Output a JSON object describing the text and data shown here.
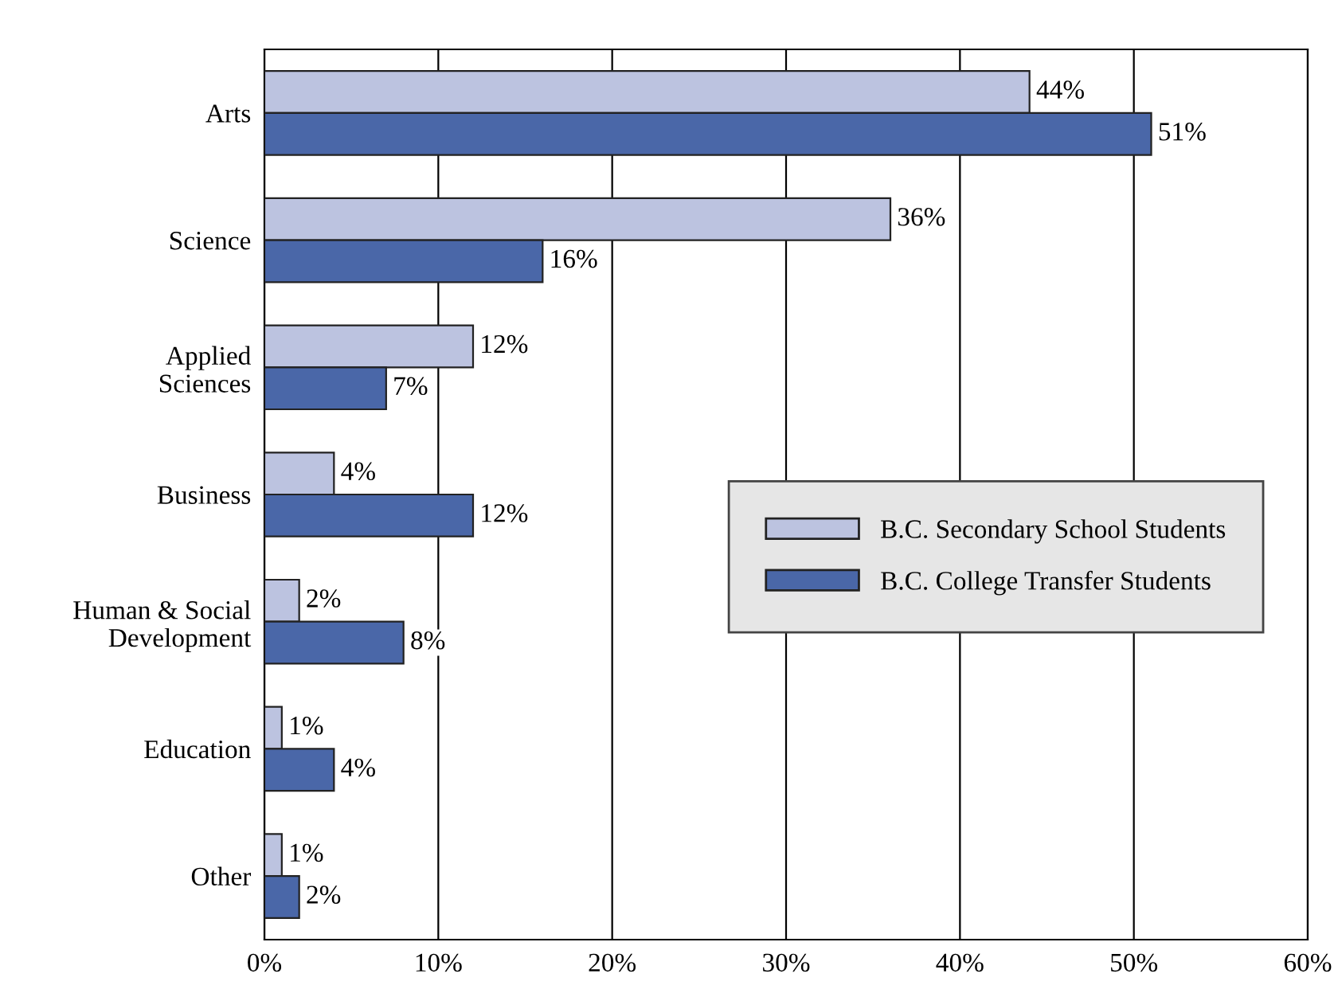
{
  "chart_data": {
    "type": "bar",
    "orientation": "horizontal",
    "categories": [
      "Arts",
      "Science",
      "Applied\nSciences",
      "Business",
      "Human & Social\nDevelopment",
      "Education",
      "Other"
    ],
    "series": [
      {
        "name": "B.C. Secondary School Students",
        "color": "#bcc3e0",
        "values": [
          44,
          36,
          12,
          4,
          2,
          1,
          1
        ],
        "value_labels": [
          "44%",
          "36%",
          "12%",
          "4%",
          "2%",
          "1%",
          "1%"
        ]
      },
      {
        "name": "B.C. College Transfer Students",
        "color": "#4a67a8",
        "values": [
          51,
          16,
          7,
          12,
          8,
          4,
          2
        ],
        "value_labels": [
          "51%",
          "16%",
          "7%",
          "12%",
          "8%",
          "4%",
          "2%"
        ]
      }
    ],
    "xlim": [
      0,
      60
    ],
    "xticks": [
      {
        "value": 0,
        "label": "0%"
      },
      {
        "value": 10,
        "label": "10%"
      },
      {
        "value": 20,
        "label": "20%"
      },
      {
        "value": 30,
        "label": "30%"
      },
      {
        "value": 40,
        "label": "40%"
      },
      {
        "value": 50,
        "label": "50%"
      },
      {
        "value": 60,
        "label": "60%"
      }
    ],
    "grid": "x",
    "legend": "right"
  }
}
